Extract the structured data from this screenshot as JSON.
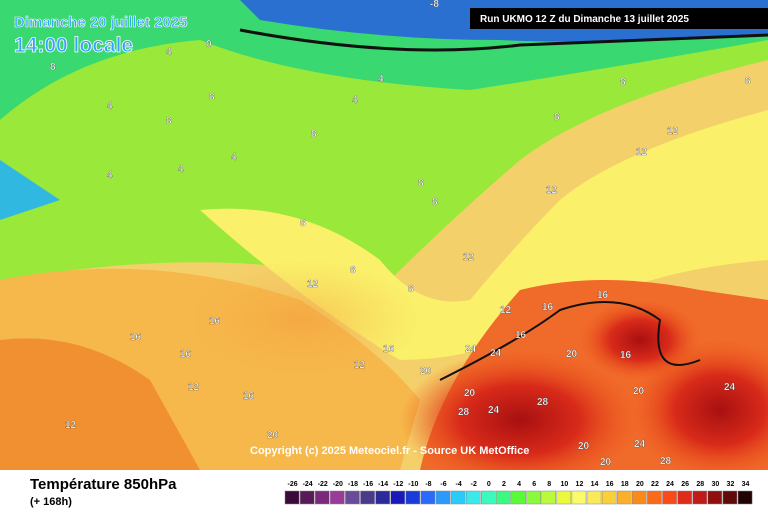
{
  "header": {
    "date": "Dimanche 20 juillet 2025",
    "time": "14:00 locale",
    "run": "Run UKMO 12 Z du Dimanche 13 juillet 2025"
  },
  "copyright": "Copyright (c) 2025 Meteociel.fr - Source UK MetOffice",
  "footer": {
    "title": "Température 850hPa",
    "lead": "(+ 168h)"
  },
  "legend": {
    "ticks": [
      -26,
      -24,
      -22,
      -20,
      -18,
      -16,
      -14,
      -12,
      -10,
      -8,
      -6,
      -4,
      -2,
      0,
      2,
      4,
      6,
      8,
      10,
      12,
      14,
      16,
      18,
      20,
      22,
      24,
      26,
      28,
      30,
      32,
      34
    ],
    "colors": [
      "#3a0a3a",
      "#5a1a5a",
      "#7a2a7a",
      "#9a3a9a",
      "#6a4a9a",
      "#4a3a8a",
      "#2a2a9a",
      "#1a1aba",
      "#1a3ada",
      "#2a6afa",
      "#2a9afa",
      "#2acafa",
      "#3aeaea",
      "#3afac0",
      "#3afa80",
      "#5afa3a",
      "#8afa3a",
      "#bafa3a",
      "#eafa3a",
      "#fafa6a",
      "#faea5a",
      "#fad03a",
      "#fab02a",
      "#fa8a1a",
      "#fa6a1a",
      "#fa4a1a",
      "#e02a1a",
      "#c01a1a",
      "#901010",
      "#600a0a",
      "#200505"
    ]
  },
  "map_labels": [
    "-8",
    "8",
    "4",
    "0",
    "8",
    "4",
    "8",
    "4",
    "4",
    "4",
    "8",
    "8",
    "4",
    "4",
    "8",
    "8",
    "8",
    "8",
    "12",
    "12",
    "12",
    "12",
    "8",
    "8",
    "8",
    "12",
    "16",
    "16",
    "16",
    "12",
    "16",
    "12",
    "16",
    "16",
    "16",
    "16",
    "20",
    "20",
    "20",
    "24",
    "28",
    "28",
    "24",
    "20",
    "20",
    "24",
    "28",
    "24",
    "24",
    "20",
    "20",
    "16",
    "12",
    "12"
  ]
}
